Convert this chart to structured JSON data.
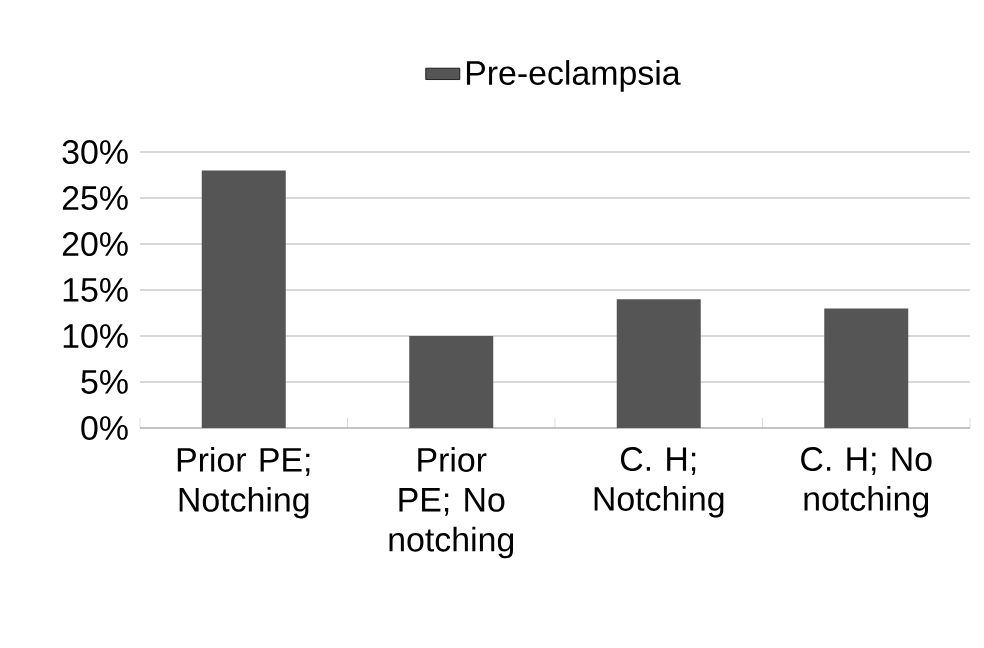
{
  "chart_data": {
    "type": "bar",
    "categories": [
      "Prior PE; Notching",
      "Prior PE; No notching",
      "C. H; Notching",
      "C. H; No notching"
    ],
    "series": [
      {
        "name": "Pre-eclampsia",
        "color": "#555555",
        "values": [
          28,
          10,
          14,
          13
        ]
      }
    ],
    "ylim": [
      0,
      30
    ],
    "yticks": [
      {
        "value": 0,
        "label": "0%"
      },
      {
        "value": 5,
        "label": "5%"
      },
      {
        "value": 10,
        "label": "10%"
      },
      {
        "value": 15,
        "label": "15%"
      },
      {
        "value": 20,
        "label": "20%"
      },
      {
        "value": 25,
        "label": "25%"
      },
      {
        "value": 30,
        "label": "30%"
      }
    ],
    "grid": "y",
    "legend": "top"
  }
}
